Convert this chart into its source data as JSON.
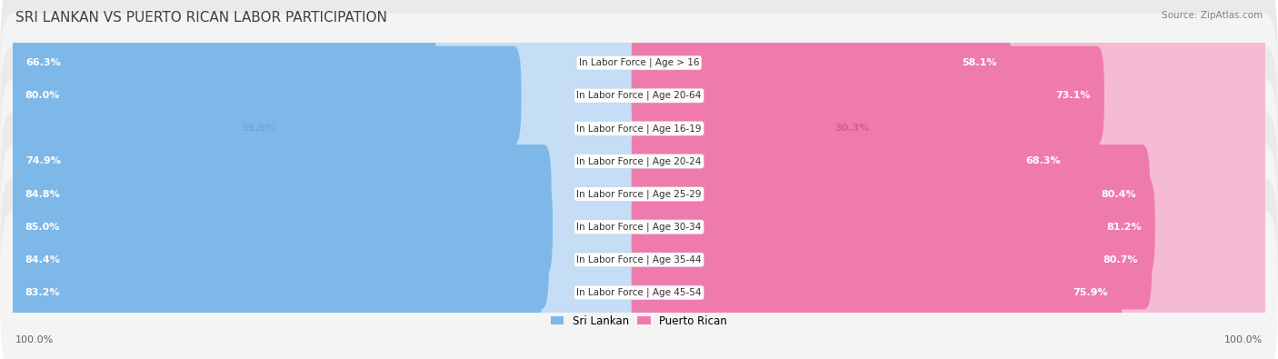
{
  "title": "SRI LANKAN VS PUERTO RICAN LABOR PARTICIPATION",
  "source": "Source: ZipAtlas.com",
  "categories": [
    "In Labor Force | Age > 16",
    "In Labor Force | Age 20-64",
    "In Labor Force | Age 16-19",
    "In Labor Force | Age 20-24",
    "In Labor Force | Age 25-29",
    "In Labor Force | Age 30-34",
    "In Labor Force | Age 35-44",
    "In Labor Force | Age 45-54"
  ],
  "sri_lankan": [
    66.3,
    80.0,
    35.5,
    74.9,
    84.8,
    85.0,
    84.4,
    83.2
  ],
  "puerto_rican": [
    58.1,
    73.1,
    30.3,
    68.3,
    80.4,
    81.2,
    80.7,
    75.9
  ],
  "sri_lankan_color": "#7EB8E8",
  "sri_lankan_color_light": "#C5DDF5",
  "puerto_rican_color": "#EF7BAD",
  "puerto_rican_color_light": "#F5BBD5",
  "row_bg_colors": [
    "#EAEAEA",
    "#F4F4F4"
  ],
  "max_value": 100.0,
  "title_fontsize": 11,
  "value_fontsize": 8,
  "category_fontsize": 7.5,
  "legend_fontsize": 8.5,
  "footer_fontsize": 8
}
